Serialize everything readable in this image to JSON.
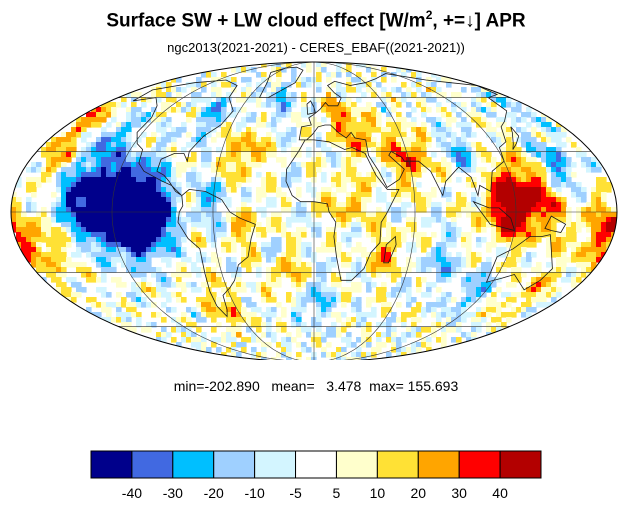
{
  "title": {
    "main": "Surface SW + LW cloud effect [W/m",
    "sup": "2",
    "suffix": ", +=↓]  APR"
  },
  "subtitle": "ngc2013(2021-2021) - CERES_EBAF((2021-2021))",
  "stats": {
    "min_label": "min=",
    "min": "-202.890",
    "mean_label": "mean=",
    "mean": "3.478",
    "max_label": "max=",
    "max": "155.693"
  },
  "colorbar": {
    "colors": [
      "#00008b",
      "#4169e1",
      "#00bfff",
      "#9fd0ff",
      "#d3f5ff",
      "#ffffff",
      "#ffffcc",
      "#ffe135",
      "#ffa500",
      "#ff0000",
      "#b30000"
    ],
    "ticks": [
      "-40",
      "-30",
      "-20",
      "-10",
      "-5",
      "5",
      "10",
      "20",
      "30",
      "40"
    ]
  },
  "map": {
    "projection": "Mollweide",
    "center_longitude": 0
  }
}
